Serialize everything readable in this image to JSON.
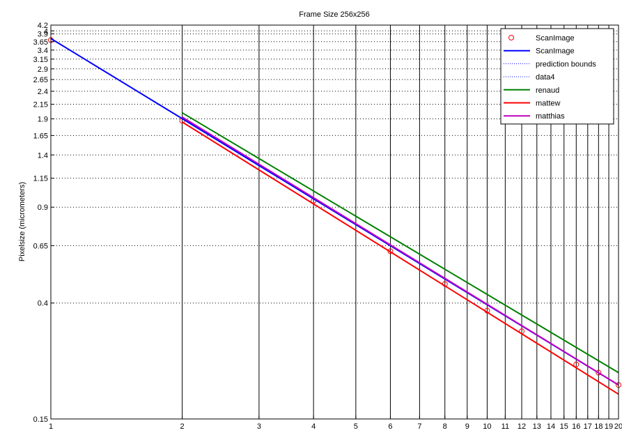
{
  "chart_data": {
    "type": "line",
    "title": "Frame Size 256x256",
    "xlabel": "",
    "ylabel": "Pixelsize (micrometers)",
    "xscale": "log",
    "yscale": "log",
    "xlim": [
      1,
      20
    ],
    "ylim": [
      0.15,
      4.2
    ],
    "grid": true,
    "legend_position": "top-right",
    "x_ticks": [
      1,
      2,
      3,
      4,
      5,
      6,
      7,
      8,
      9,
      10,
      11,
      12,
      13,
      14,
      15,
      16,
      17,
      18,
      19,
      20
    ],
    "y_ticks": [
      0.15,
      0.4,
      0.65,
      0.9,
      1.15,
      1.4,
      1.65,
      1.9,
      2.15,
      2.4,
      2.65,
      2.9,
      3.15,
      3.4,
      3.65,
      3.9,
      4,
      4.2
    ],
    "y_tick_labels": [
      "0.15",
      "0.4",
      "0.65",
      "0.9",
      "1.15",
      "1.4",
      "1.65",
      "1.9",
      "2.15",
      "2.4",
      "2.65",
      "2.9",
      "3.15",
      "3.4",
      "3.65",
      "3.9",
      "4",
      "4.2"
    ],
    "series": [
      {
        "name": "ScanImage",
        "kind": "markers",
        "color": "#ff0000",
        "x": [
          1,
          2,
          4,
          6,
          8,
          10,
          12,
          16,
          18,
          20
        ],
        "y": [
          3.7,
          1.87,
          0.95,
          0.62,
          0.47,
          0.375,
          0.315,
          0.238,
          0.222,
          0.2
        ]
      },
      {
        "name": "ScanImage",
        "kind": "line",
        "color": "#0000ff",
        "x": [
          1,
          20
        ],
        "y": [
          3.75,
          0.2
        ]
      },
      {
        "name": "prediction bounds",
        "kind": "dotted",
        "color": "#0000ff",
        "x": [],
        "y": []
      },
      {
        "name": "data4",
        "kind": "dotted",
        "color": "#0000ff",
        "x": [],
        "y": []
      },
      {
        "name": "renaud",
        "kind": "line",
        "color": "#008000",
        "x": [
          2,
          20
        ],
        "y": [
          2.0,
          0.222
        ]
      },
      {
        "name": "mattew",
        "kind": "line",
        "color": "#ff0000",
        "x": [
          2,
          20
        ],
        "y": [
          1.85,
          0.185
        ]
      },
      {
        "name": "matthias",
        "kind": "line",
        "color": "#bf00bf",
        "x": [
          2,
          20
        ],
        "y": [
          1.93,
          0.2
        ]
      }
    ]
  }
}
